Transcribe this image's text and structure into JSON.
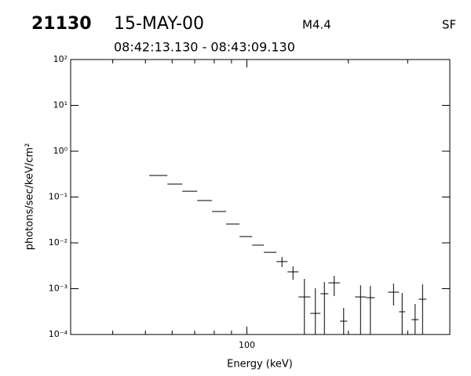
{
  "chart_data": {
    "type": "errorbar",
    "title": "21130",
    "date": "15-MAY-00",
    "flare_class": "M4.4",
    "station": "SF",
    "subtitle": "08:42:13.130 - 08:43:09.130",
    "xlabel": "Energy (keV)",
    "ylabel": "photons/sec/keV/cm²",
    "color": "#000000",
    "xscale": "log",
    "yscale": "log",
    "xlim": [
      30,
      400
    ],
    "ylim": [
      0.0001,
      100
    ],
    "xticks": [
      100
    ],
    "xminor": [
      40,
      50,
      60,
      70,
      80,
      90,
      200,
      300,
      400
    ],
    "yticks": [
      {
        "value": 0.0001,
        "label": "10⁻⁴"
      },
      {
        "value": 0.001,
        "label": "10⁻³"
      },
      {
        "value": 0.01,
        "label": "10⁻²"
      },
      {
        "value": 0.1,
        "label": "10⁻¹"
      },
      {
        "value": 1,
        "label": "10⁰"
      },
      {
        "value": 10,
        "label": "10¹"
      },
      {
        "value": 100,
        "label": "10²"
      }
    ],
    "x_low": [
      51.3,
      58.1,
      64.3,
      71.2,
      78.8,
      86.8,
      95.1,
      103.7,
      112.3,
      122.4,
      132,
      142.3,
      154.2,
      165.3,
      174.5,
      189,
      209.4,
      225.7,
      262.3,
      282.8,
      308,
      323.4
    ],
    "x_high": [
      58.1,
      64.3,
      71.2,
      78.8,
      86.8,
      95.1,
      103.7,
      112.3,
      122.4,
      132,
      142.3,
      154.2,
      165.3,
      174.5,
      189,
      198.5,
      225.7,
      239.5,
      282.8,
      295,
      323.4,
      341
    ],
    "values": [
      0.295,
      0.191,
      0.134,
      0.0838,
      0.0483,
      0.0257,
      0.0137,
      0.0089,
      0.0062,
      0.0039,
      0.00233,
      0.00066,
      0.000289,
      0.000774,
      0.00134,
      0.000195,
      0.00066,
      0.000636,
      0.000837,
      0.000313,
      0.000211,
      0.000588
    ],
    "y_low": [
      null,
      null,
      null,
      null,
      null,
      null,
      null,
      null,
      null,
      0.00295,
      0.00157,
      5e-05,
      5e-05,
      5e-05,
      0.000688,
      5e-05,
      5e-05,
      5e-05,
      0.000429,
      5e-05,
      5e-05,
      5e-05
    ],
    "y_high": [
      null,
      null,
      null,
      null,
      null,
      null,
      null,
      null,
      null,
      0.0049,
      0.00307,
      0.00164,
      0.00102,
      0.0014,
      0.00191,
      0.000381,
      0.00119,
      0.00115,
      0.00129,
      0.000805,
      0.000464,
      0.00124
    ]
  }
}
